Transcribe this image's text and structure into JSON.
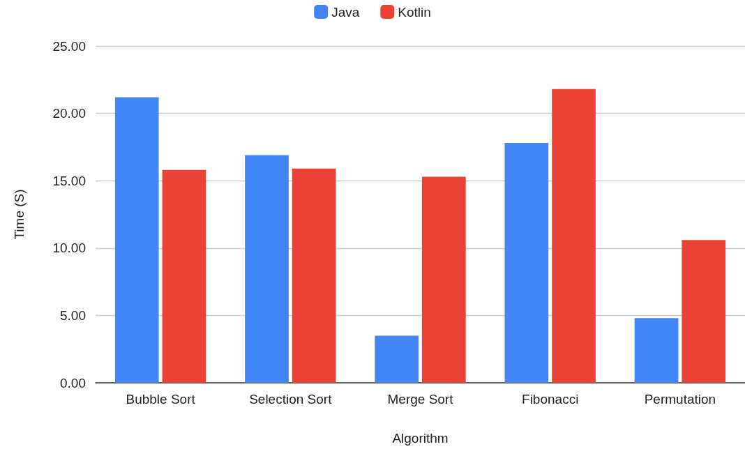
{
  "chart_data": {
    "type": "bar",
    "xlabel": "Algorithm",
    "ylabel": "Time (S)",
    "categories": [
      "Bubble Sort",
      "Selection Sort",
      "Merge Sort",
      "Fibonacci",
      "Permutation"
    ],
    "series": [
      {
        "name": "Java",
        "color": "#4285f4",
        "values": [
          21.2,
          16.9,
          3.5,
          17.8,
          4.8
        ]
      },
      {
        "name": "Kotlin",
        "color": "#ea4335",
        "values": [
          15.8,
          15.9,
          15.3,
          21.8,
          10.6
        ]
      }
    ],
    "ylim": [
      0,
      25
    ],
    "yticks": [
      {
        "value": 0,
        "label": "0.00"
      },
      {
        "value": 5,
        "label": "5.00"
      },
      {
        "value": 10,
        "label": "10.00"
      },
      {
        "value": 15,
        "label": "15.00"
      },
      {
        "value": 20,
        "label": "20.00"
      },
      {
        "value": 25,
        "label": "25.00"
      }
    ],
    "grid": "y",
    "legend": "top"
  }
}
